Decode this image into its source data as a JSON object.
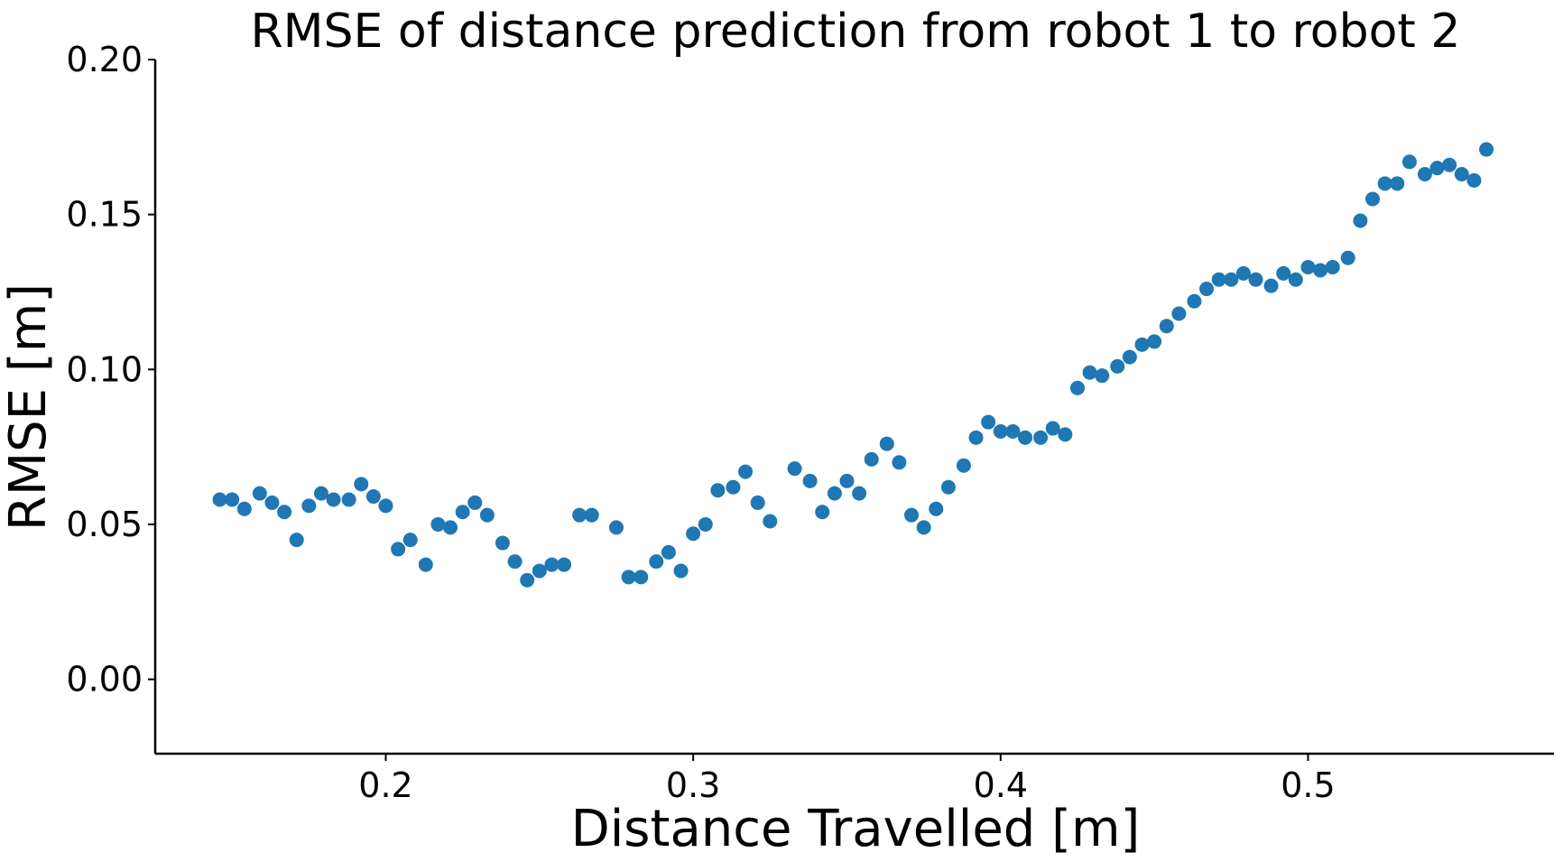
{
  "chart_data": {
    "type": "scatter",
    "title": "RMSE of distance prediction from robot 1 to robot 2",
    "xlabel": "Distance Travelled [m]",
    "ylabel": "RMSE [m]",
    "xlim": [
      0.125,
      0.58
    ],
    "ylim": [
      -0.024,
      0.2
    ],
    "xticks": [
      0.2,
      0.3,
      0.4,
      0.5
    ],
    "xtick_labels": [
      "0.2",
      "0.3",
      "0.4",
      "0.5"
    ],
    "yticks": [
      0.0,
      0.05,
      0.1,
      0.15,
      0.2
    ],
    "ytick_labels": [
      "0.00",
      "0.05",
      "0.10",
      "0.15",
      "0.20"
    ],
    "grid": false,
    "marker_color": "#1f77b4",
    "series": [
      {
        "x": [
          0.146,
          0.15,
          0.154,
          0.159,
          0.163,
          0.167,
          0.171,
          0.175,
          0.179,
          0.183,
          0.188,
          0.192,
          0.196,
          0.2,
          0.204,
          0.208,
          0.213,
          0.217,
          0.221,
          0.225,
          0.229,
          0.233,
          0.238,
          0.242,
          0.246,
          0.25,
          0.254,
          0.258,
          0.263,
          0.267,
          0.275,
          0.279,
          0.283,
          0.288,
          0.292,
          0.296,
          0.3,
          0.304,
          0.308,
          0.313,
          0.317,
          0.321,
          0.325,
          0.333,
          0.338,
          0.342,
          0.346,
          0.35,
          0.354,
          0.358,
          0.363,
          0.367,
          0.371,
          0.375,
          0.379,
          0.383,
          0.388,
          0.392,
          0.396,
          0.4,
          0.404,
          0.408,
          0.413,
          0.417,
          0.421,
          0.425,
          0.429,
          0.433,
          0.438,
          0.442,
          0.446,
          0.45,
          0.454,
          0.458,
          0.463,
          0.467,
          0.471,
          0.475,
          0.479,
          0.483,
          0.488,
          0.492,
          0.496,
          0.5,
          0.504,
          0.508,
          0.513,
          0.517,
          0.521,
          0.525,
          0.529,
          0.533,
          0.538,
          0.542,
          0.546,
          0.55,
          0.554,
          0.558
        ],
        "y": [
          0.058,
          0.058,
          0.055,
          0.06,
          0.057,
          0.054,
          0.045,
          0.056,
          0.06,
          0.058,
          0.058,
          0.063,
          0.059,
          0.056,
          0.042,
          0.045,
          0.037,
          0.05,
          0.049,
          0.054,
          0.057,
          0.053,
          0.044,
          0.038,
          0.032,
          0.035,
          0.037,
          0.037,
          0.053,
          0.053,
          0.049,
          0.033,
          0.033,
          0.038,
          0.041,
          0.035,
          0.047,
          0.05,
          0.061,
          0.062,
          0.067,
          0.057,
          0.051,
          0.068,
          0.064,
          0.054,
          0.06,
          0.064,
          0.06,
          0.071,
          0.076,
          0.07,
          0.053,
          0.049,
          0.055,
          0.062,
          0.069,
          0.078,
          0.083,
          0.08,
          0.08,
          0.078,
          0.078,
          0.081,
          0.079,
          0.094,
          0.099,
          0.098,
          0.101,
          0.104,
          0.108,
          0.109,
          0.114,
          0.118,
          0.122,
          0.126,
          0.129,
          0.129,
          0.131,
          0.129,
          0.127,
          0.131,
          0.129,
          0.133,
          0.132,
          0.133,
          0.136,
          0.148,
          0.155,
          0.16,
          0.16,
          0.167,
          0.163,
          0.165,
          0.166,
          0.163,
          0.161,
          0.171
        ]
      }
    ]
  }
}
